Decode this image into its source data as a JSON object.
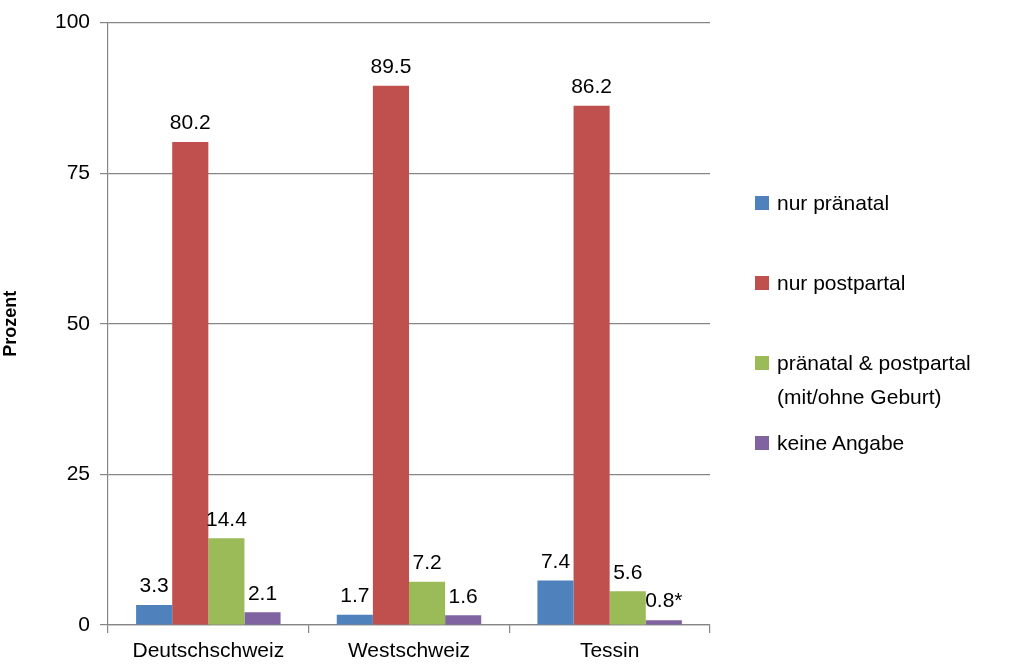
{
  "chart_data": {
    "type": "bar",
    "ylabel": "Prozent",
    "categories": [
      "Deutschschweiz",
      "Westschweiz",
      "Tessin"
    ],
    "series": [
      {
        "name": "nur pränatal",
        "color": "#4f81bd",
        "values": [
          3.3,
          1.7,
          7.4
        ],
        "value_labels": [
          "3.3",
          "1.7",
          "7.4"
        ]
      },
      {
        "name": "nur postpartal",
        "color": "#c0504d",
        "values": [
          80.2,
          89.5,
          86.2
        ],
        "value_labels": [
          "80.2",
          "89.5",
          "86.2"
        ]
      },
      {
        "name": "pränatal & postpartal (mit/ohne Geburt)",
        "color": "#9bbb59",
        "values": [
          14.4,
          7.2,
          5.6
        ],
        "value_labels": [
          "14.4",
          "7.2",
          "5.6"
        ]
      },
      {
        "name": "keine Angabe",
        "color": "#8064a2",
        "values": [
          2.1,
          1.6,
          0.8
        ],
        "value_labels": [
          "2.1",
          "1.6",
          "0.8*"
        ]
      }
    ],
    "ylim": [
      0,
      100
    ],
    "yticks": [
      0,
      25,
      50,
      75,
      100
    ],
    "grid": "y",
    "legend": "right"
  }
}
